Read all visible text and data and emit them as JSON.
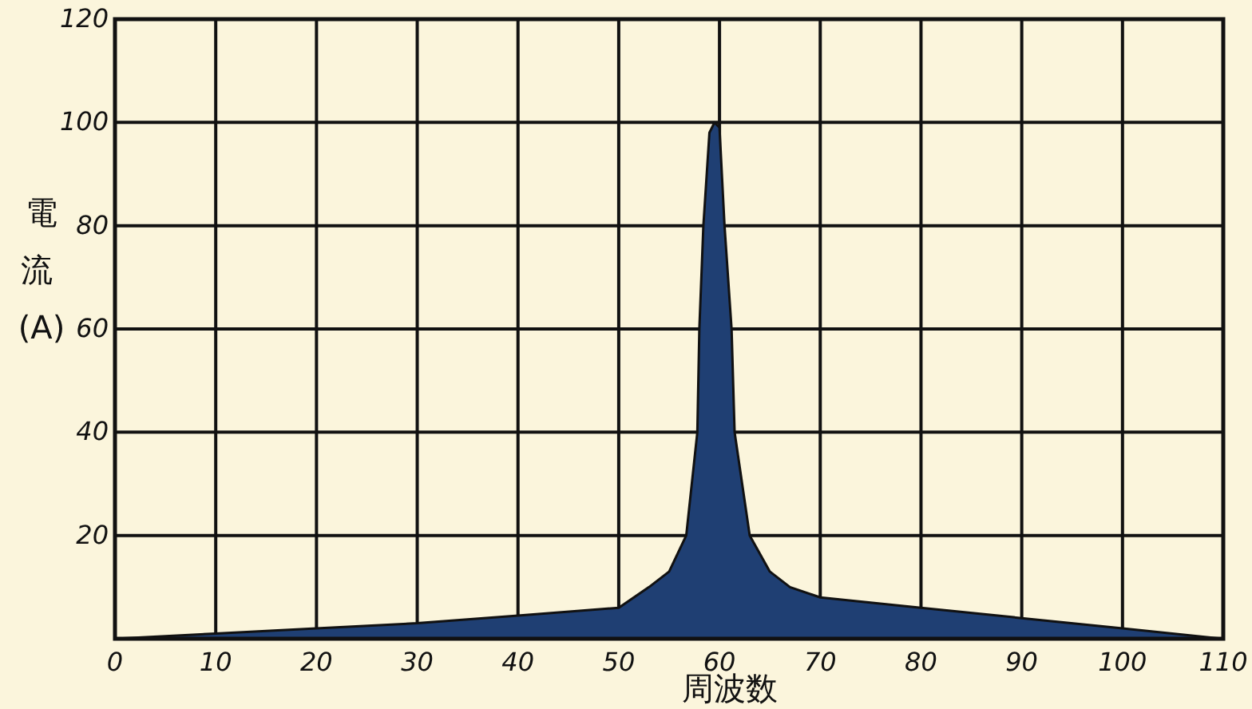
{
  "chart_data": {
    "type": "area",
    "xlabel": "周波数",
    "ylabel": "電流 (A)",
    "x": [
      0,
      10,
      20,
      30,
      40,
      50,
      53,
      55,
      56.7,
      57.8,
      58,
      58.4,
      59,
      59.5,
      60,
      60.5,
      61.2,
      61.5,
      63,
      65,
      67,
      70,
      80,
      90,
      100,
      110
    ],
    "series": [
      {
        "color": "#1f3f73",
        "values": [
          0,
          1,
          2,
          3,
          4.5,
          6,
          10,
          13,
          20,
          40,
          60,
          80,
          98,
          100,
          99,
          80,
          60,
          40,
          20,
          13,
          10,
          8,
          6,
          4,
          2,
          0
        ]
      }
    ],
    "xlim": [
      0,
      110
    ],
    "ylim": [
      0,
      120
    ],
    "xticks": [
      0,
      10,
      20,
      30,
      40,
      50,
      60,
      70,
      80,
      90,
      100,
      110
    ],
    "yticks": [
      {
        "value": 0,
        "label": null
      },
      20,
      40,
      60,
      80,
      100,
      120
    ],
    "grid": true
  }
}
